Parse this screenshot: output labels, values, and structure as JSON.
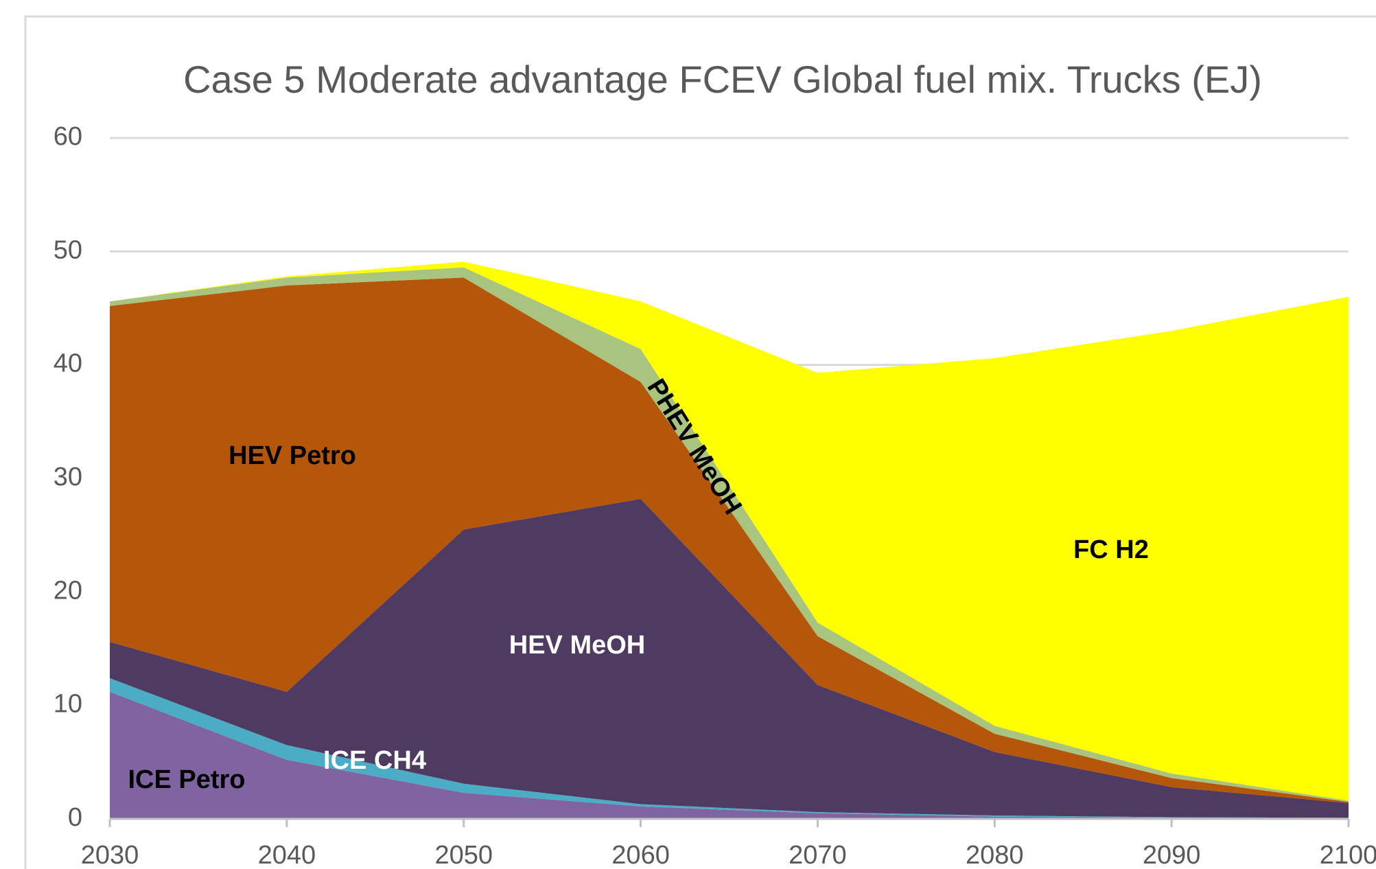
{
  "chart_data": {
    "type": "stacked-area",
    "title": "Case 5 Moderate advantage FCEV Global fuel mix. Trucks (EJ)",
    "x": [
      2030,
      2040,
      2050,
      2060,
      2070,
      2080,
      2090,
      2100
    ],
    "xlim": [
      2030,
      2100
    ],
    "xticks": [
      2030,
      2040,
      2050,
      2060,
      2070,
      2080,
      2090,
      2100
    ],
    "ylim": [
      0,
      60
    ],
    "yticks": [
      0,
      10,
      20,
      30,
      40,
      50,
      60
    ],
    "grid": true,
    "series": [
      {
        "name": "ICE Petro",
        "color": "#8064a2",
        "values": [
          11.2,
          5.2,
          2.3,
          1.1,
          0.5,
          0.2,
          0.1,
          0.05
        ]
      },
      {
        "name": "ICE CH4",
        "color": "#4bacc6",
        "values": [
          1.2,
          1.3,
          0.8,
          0.2,
          0.1,
          0.1,
          0.05,
          0.05
        ]
      },
      {
        "name": "HEV MeOH",
        "color": "#4f3b62",
        "values": [
          3.2,
          4.7,
          22.4,
          26.9,
          11.2,
          5.6,
          2.65,
          1.3
        ]
      },
      {
        "name": "HEV Petro",
        "color": "#b5570a",
        "values": [
          29.6,
          35.8,
          22.2,
          10.3,
          4.3,
          1.6,
          0.8,
          0.1
        ]
      },
      {
        "name": "PHEV MeOH",
        "color": "#a9c47f",
        "values": [
          0.4,
          0.7,
          0.9,
          2.9,
          1.2,
          0.7,
          0.4,
          0.1
        ]
      },
      {
        "name": "FC H2",
        "color": "#ffff00",
        "values": [
          0,
          0.1,
          0.5,
          4.2,
          22,
          32.4,
          39,
          44.4
        ]
      }
    ]
  }
}
